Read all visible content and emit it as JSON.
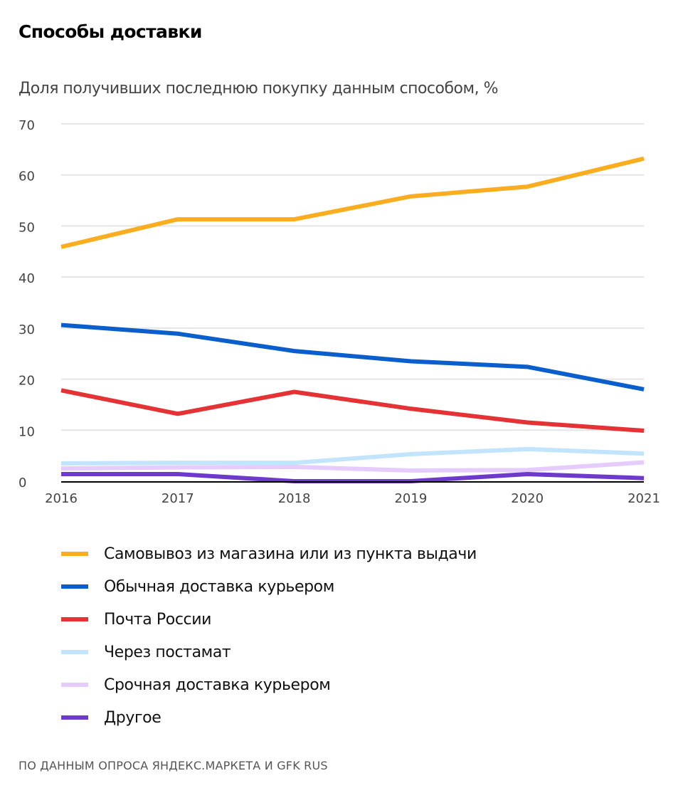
{
  "header": {
    "title": "Способы доставки",
    "subtitle": "Доля получивших последнюю покупку данным способом, %"
  },
  "chart_data": {
    "type": "line",
    "title": "Способы доставки",
    "subtitle": "Доля получивших последнюю покупку данным способом, %",
    "xlabel": "",
    "ylabel": "Доля получивших последнюю покупку данным способом, %",
    "x": [
      "2016",
      "2017",
      "2018",
      "2019",
      "2020",
      "2021"
    ],
    "ylim": [
      0,
      70
    ],
    "yticks": [
      "0",
      "10",
      "20",
      "30",
      "40",
      "50",
      "60",
      "70"
    ],
    "grid": true,
    "legend_position": "bottom",
    "series": [
      {
        "name": "Самовывоз из магазина или из пункта выдачи",
        "color": "#FAAE1F",
        "values": [
          45.9,
          51.3,
          51.3,
          55.8,
          57.7,
          63.2
        ]
      },
      {
        "name": "Обычная доставка курьером",
        "color": "#0B5FCC",
        "values": [
          30.6,
          28.9,
          25.5,
          23.5,
          22.4,
          18.0
        ]
      },
      {
        "name": "Почта России",
        "color": "#E53235",
        "values": [
          17.8,
          13.2,
          17.5,
          14.2,
          11.5,
          9.9
        ]
      },
      {
        "name": "Через постамат",
        "color": "#C2E4FC",
        "values": [
          3.5,
          3.6,
          3.6,
          5.3,
          6.3,
          5.4
        ]
      },
      {
        "name": "Срочная доставка курьером",
        "color": "#E6CCFC",
        "values": [
          2.5,
          2.7,
          2.8,
          2.1,
          2.2,
          3.7
        ]
      },
      {
        "name": "Другое",
        "color": "#6E3ACB",
        "values": [
          1.4,
          1.4,
          0.0,
          0.0,
          1.4,
          0.6
        ]
      }
    ]
  },
  "footer": {
    "source": "ПО ДАННЫМ ОПРОСА ЯНДЕКС.МАРКЕТА И GFK RUS"
  }
}
